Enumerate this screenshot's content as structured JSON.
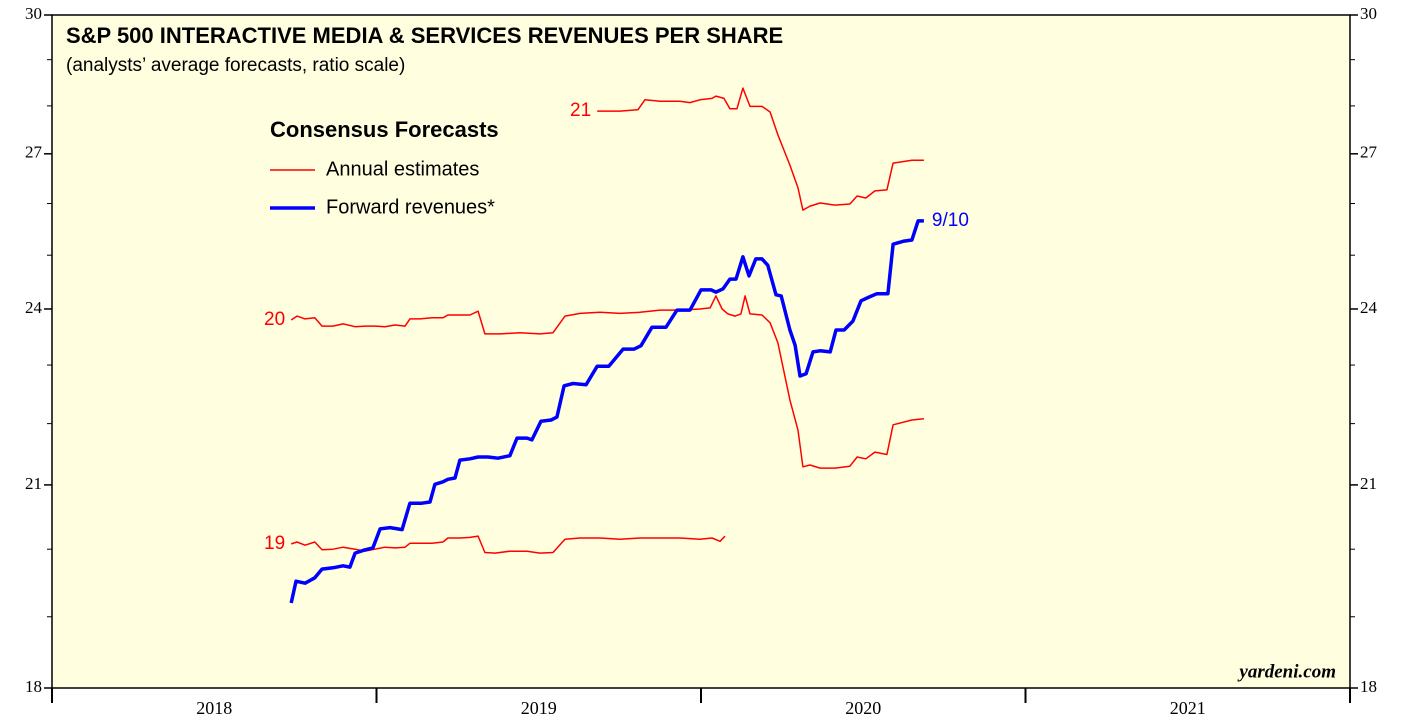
{
  "chart_data": {
    "type": "line",
    "title": "S&P 500 INTERACTIVE MEDIA & SERVICES REVENUES PER SHARE",
    "subtitle": "(analysts’ average forecasts, ratio scale)",
    "credit": "yardeni.com",
    "yscale": "log",
    "ylim": [
      18,
      30
    ],
    "yticks": [
      18,
      21,
      24,
      27,
      30
    ],
    "yminor": [
      19,
      20,
      22,
      23,
      25,
      26,
      28,
      29
    ],
    "xlim": [
      2018,
      2022
    ],
    "year_boundaries": [
      2018,
      2019,
      2020,
      2021,
      2022
    ],
    "x_categories": [
      "2018",
      "2019",
      "2020",
      "2021"
    ],
    "background": "#ffffe0",
    "legend": {
      "title": "Consensus Forecasts"
    },
    "annual_estimates": {
      "name": "Annual estimates",
      "color": "#ff0000",
      "lines": [
        {
          "label": "19",
          "x": [
            2018.737,
            2018.755,
            2018.78,
            2018.81,
            2018.832,
            2018.866,
            2018.897,
            2018.934,
            2018.965,
            2018.995,
            2019.026,
            2019.057,
            2019.088,
            2019.103,
            2019.134,
            2019.171,
            2019.205,
            2019.22,
            2019.257,
            2019.288,
            2019.313,
            2019.334,
            2019.365,
            2019.411,
            2019.464,
            2019.504,
            2019.544,
            2019.581,
            2019.627,
            2019.689,
            2019.75,
            2019.812,
            2019.874,
            2019.935,
            2019.997,
            2020.034,
            2020.059,
            2020.074
          ],
          "values": [
            20.08,
            20.11,
            20.06,
            20.11,
            19.99,
            20.0,
            20.03,
            20.0,
            19.97,
            20.0,
            20.03,
            20.02,
            20.03,
            20.09,
            20.09,
            20.09,
            20.11,
            20.17,
            20.17,
            20.18,
            20.2,
            19.95,
            19.94,
            19.97,
            19.97,
            19.94,
            19.95,
            20.15,
            20.17,
            20.17,
            20.15,
            20.17,
            20.17,
            20.17,
            20.15,
            20.17,
            20.12,
            20.2
          ]
        },
        {
          "label": "20",
          "x": [
            2018.737,
            2018.755,
            2018.78,
            2018.81,
            2018.832,
            2018.866,
            2018.897,
            2018.934,
            2018.965,
            2018.995,
            2019.026,
            2019.057,
            2019.088,
            2019.103,
            2019.134,
            2019.171,
            2019.205,
            2019.22,
            2019.288,
            2019.313,
            2019.334,
            2019.381,
            2019.442,
            2019.504,
            2019.544,
            2019.581,
            2019.627,
            2019.689,
            2019.75,
            2019.812,
            2019.874,
            2019.935,
            2019.997,
            2020.028,
            2020.046,
            2020.065,
            2020.083,
            2020.105,
            2020.123,
            2020.136,
            2020.151,
            2020.188,
            2020.213,
            2020.237,
            2020.274,
            2020.299,
            2020.314,
            2020.336,
            2020.367,
            2020.413,
            2020.459,
            2020.481,
            2020.508,
            2020.536,
            2020.573,
            2020.592,
            2020.65,
            2020.687
          ],
          "values": [
            23.8,
            23.87,
            23.82,
            23.84,
            23.69,
            23.69,
            23.73,
            23.68,
            23.69,
            23.69,
            23.68,
            23.71,
            23.69,
            23.82,
            23.82,
            23.84,
            23.84,
            23.89,
            23.89,
            23.96,
            23.55,
            23.55,
            23.57,
            23.55,
            23.57,
            23.87,
            23.92,
            23.94,
            23.92,
            23.94,
            23.98,
            23.98,
            24.0,
            24.02,
            24.24,
            24.0,
            23.91,
            23.87,
            23.91,
            24.24,
            23.91,
            23.89,
            23.75,
            23.39,
            22.4,
            21.89,
            21.29,
            21.32,
            21.27,
            21.27,
            21.3,
            21.45,
            21.42,
            21.53,
            21.49,
            21.98,
            22.06,
            22.08
          ]
        },
        {
          "label": "21",
          "x": [
            2019.68,
            2019.75,
            2019.806,
            2019.827,
            2019.874,
            2019.935,
            2019.966,
            2019.997,
            2020.034,
            2020.046,
            2020.071,
            2020.089,
            2020.111,
            2020.129,
            2020.151,
            2020.188,
            2020.213,
            2020.237,
            2020.274,
            2020.299,
            2020.314,
            2020.336,
            2020.367,
            2020.413,
            2020.459,
            2020.481,
            2020.508,
            2020.536,
            2020.573,
            2020.592,
            2020.65,
            2020.687
          ],
          "values": [
            27.89,
            27.89,
            27.92,
            28.13,
            28.1,
            28.1,
            28.07,
            28.13,
            28.16,
            28.21,
            28.16,
            27.94,
            27.94,
            28.38,
            27.99,
            27.99,
            27.87,
            27.39,
            26.77,
            26.31,
            25.87,
            25.95,
            26.01,
            25.97,
            25.99,
            26.15,
            26.11,
            26.25,
            26.27,
            26.81,
            26.87,
            26.87
          ]
        }
      ]
    },
    "series": [
      {
        "name": "Forward revenues*",
        "color": "#0000ff",
        "end_label": "9/10",
        "x": [
          2018.737,
          2018.752,
          2018.78,
          2018.81,
          2018.832,
          2018.866,
          2018.897,
          2018.918,
          2018.934,
          2018.965,
          2018.989,
          2019.011,
          2019.042,
          2019.079,
          2019.103,
          2019.14,
          2019.165,
          2019.18,
          2019.205,
          2019.22,
          2019.242,
          2019.257,
          2019.288,
          2019.313,
          2019.344,
          2019.374,
          2019.411,
          2019.433,
          2019.464,
          2019.479,
          2019.507,
          2019.538,
          2019.556,
          2019.578,
          2019.606,
          2019.646,
          2019.68,
          2019.716,
          2019.76,
          2019.794,
          2019.815,
          2019.849,
          2019.892,
          2019.926,
          2019.966,
          2020.0,
          2020.031,
          2020.046,
          2020.068,
          2020.089,
          2020.108,
          2020.129,
          2020.148,
          2020.169,
          2020.188,
          2020.206,
          2020.231,
          2020.247,
          2020.274,
          2020.29,
          2020.305,
          2020.324,
          2020.345,
          2020.367,
          2020.398,
          2020.416,
          2020.441,
          2020.468,
          2020.493,
          2020.515,
          2020.542,
          2020.576,
          2020.592,
          2020.626,
          2020.65,
          2020.669,
          2020.687
        ],
        "values": [
          19.2,
          19.52,
          19.49,
          19.57,
          19.7,
          19.72,
          19.75,
          19.73,
          19.94,
          19.99,
          20.02,
          20.31,
          20.33,
          20.3,
          20.71,
          20.71,
          20.73,
          21.01,
          21.05,
          21.09,
          21.11,
          21.4,
          21.42,
          21.45,
          21.45,
          21.43,
          21.47,
          21.76,
          21.76,
          21.73,
          22.04,
          22.06,
          22.11,
          22.64,
          22.68,
          22.66,
          22.98,
          22.98,
          23.28,
          23.28,
          23.34,
          23.67,
          23.67,
          23.98,
          23.98,
          24.35,
          24.35,
          24.31,
          24.37,
          24.55,
          24.55,
          24.97,
          24.61,
          24.93,
          24.93,
          24.81,
          24.26,
          24.24,
          23.62,
          23.35,
          22.81,
          22.85,
          23.23,
          23.25,
          23.23,
          23.62,
          23.62,
          23.78,
          24.15,
          24.21,
          24.28,
          24.28,
          25.21,
          25.27,
          25.29,
          25.66,
          25.66
        ]
      }
    ]
  }
}
